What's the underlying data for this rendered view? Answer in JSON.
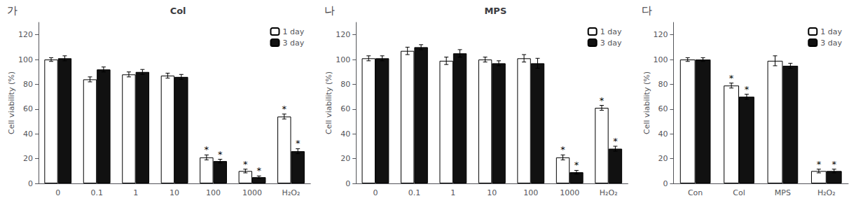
{
  "chart_data": [
    {
      "type": "bar",
      "title": "Col",
      "panel_label": "가",
      "categories": [
        "0",
        "0.1",
        "1",
        "10",
        "100",
        "1000",
        "H₂O₂"
      ],
      "series": [
        {
          "name": "1 day",
          "color": "#ffffff",
          "edge_color": "#000000",
          "values": [
            100,
            84,
            88,
            87,
            21,
            10,
            54
          ],
          "errors": [
            1.5,
            2,
            2,
            2,
            2,
            1.5,
            2
          ]
        },
        {
          "name": "3 day",
          "color": "#111111",
          "edge_color": "#000000",
          "values": [
            101,
            92,
            90,
            86,
            18,
            5,
            26
          ],
          "errors": [
            2,
            2,
            2,
            2,
            1.5,
            1,
            2
          ]
        }
      ],
      "annotations": [
        {
          "text": "*",
          "category": "100",
          "series": "1 day"
        },
        {
          "text": "*",
          "category": "1000",
          "series": "1 day"
        },
        {
          "text": "*",
          "category": "H₂O₂",
          "series": "1 day"
        },
        {
          "text": "*",
          "category": "100",
          "series": "3 day"
        },
        {
          "text": "*",
          "category": "1000",
          "series": "3 day"
        },
        {
          "text": "*",
          "category": "H₂O₂",
          "series": "3 day"
        }
      ],
      "ylabel": "Cell viability (%)",
      "ylim": [
        0,
        130
      ],
      "yticks": [
        0,
        20,
        40,
        60,
        80,
        100,
        120
      ],
      "grid": false,
      "legend": "upper right"
    },
    {
      "type": "bar",
      "title": "MPS",
      "panel_label": "나",
      "categories": [
        "0",
        "0.1",
        "1",
        "10",
        "100",
        "1000",
        "H₂O₂"
      ],
      "series": [
        {
          "name": "1 day",
          "color": "#ffffff",
          "edge_color": "#000000",
          "values": [
            101,
            107,
            99,
            100,
            101,
            21,
            61
          ],
          "errors": [
            2,
            3,
            3,
            2,
            3,
            2,
            2
          ]
        },
        {
          "name": "3 day",
          "color": "#111111",
          "edge_color": "#000000",
          "values": [
            101,
            110,
            105,
            97,
            97,
            9,
            28
          ],
          "errors": [
            2,
            2,
            3,
            2,
            4,
            1.5,
            2
          ]
        }
      ],
      "annotations": [
        {
          "text": "*",
          "category": "1000",
          "series": "1 day"
        },
        {
          "text": "*",
          "category": "H₂O₂",
          "series": "1 day"
        },
        {
          "text": "*",
          "category": "1000",
          "series": "3 day"
        },
        {
          "text": "*",
          "category": "H₂O₂",
          "series": "3 day"
        }
      ],
      "ylabel": "Cell viability (%)",
      "ylim": [
        0,
        130
      ],
      "yticks": [
        0,
        20,
        40,
        60,
        80,
        100,
        120
      ],
      "grid": false,
      "legend": "upper right"
    },
    {
      "type": "bar",
      "panel_label": "다",
      "categories": [
        "Con",
        "Col",
        "MPS",
        "H₂O₂"
      ],
      "series": [
        {
          "name": "1 day",
          "color": "#ffffff",
          "edge_color": "#000000",
          "values": [
            100,
            79,
            99,
            10
          ],
          "errors": [
            1.5,
            2,
            4,
            1.5
          ]
        },
        {
          "name": "3 day",
          "color": "#111111",
          "edge_color": "#000000",
          "values": [
            100,
            70,
            95,
            10
          ],
          "errors": [
            1.5,
            2,
            2,
            1.5
          ]
        }
      ],
      "annotations": [
        {
          "text": "*",
          "category": "Col",
          "series": "1 day"
        },
        {
          "text": "*",
          "category": "H₂O₂",
          "series": "1 day"
        },
        {
          "text": "*",
          "category": "Col",
          "series": "3 day"
        },
        {
          "text": "*",
          "category": "H₂O₂",
          "series": "3 day"
        }
      ],
      "ylabel": "Cell viability (%)",
      "ylim": [
        0,
        130
      ],
      "yticks": [
        0,
        20,
        40,
        60,
        80,
        100,
        120
      ],
      "grid": false,
      "legend": "upper right"
    }
  ]
}
